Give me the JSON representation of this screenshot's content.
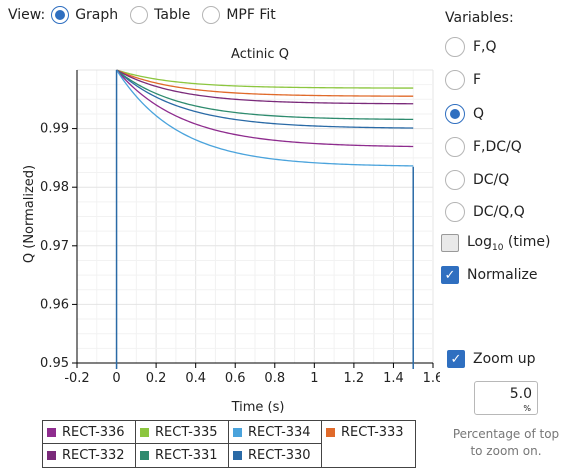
{
  "view": {
    "label": "View:",
    "options": [
      {
        "label": "Graph",
        "checked": true
      },
      {
        "label": "Table",
        "checked": false
      },
      {
        "label": "MPF Fit",
        "checked": false
      }
    ]
  },
  "variables": {
    "title": "Variables:",
    "options": [
      {
        "label": "F,Q",
        "checked": false
      },
      {
        "label": "F",
        "checked": false
      },
      {
        "label": "Q",
        "checked": true
      },
      {
        "label": "F,DC/Q",
        "checked": false
      },
      {
        "label": "DC/Q",
        "checked": false
      },
      {
        "label": "DC/Q,Q",
        "checked": false
      }
    ]
  },
  "log_option": {
    "label": "Log",
    "subscript": "10",
    "suffix": " (time)",
    "checked": false
  },
  "normalize_option": {
    "label": "Normalize",
    "checked": true
  },
  "zoom": {
    "label": "Zoom up",
    "checked": true,
    "value": "5.0",
    "unit": "%",
    "caption_line1": "Percentage of top",
    "caption_line2": "to zoom on."
  },
  "colors": {
    "accent": "#2f6fc0"
  },
  "chart_data": {
    "type": "line",
    "title": "Actinic Q",
    "xlabel": "Time (s)",
    "ylabel": "Q (Normalized)",
    "xlim": [
      -0.2,
      1.6
    ],
    "ylim": [
      0.95,
      1.0
    ],
    "xticks": [
      -0.2,
      0,
      0.2,
      0.4,
      0.6,
      0.8,
      1,
      1.2,
      1.4,
      1.6
    ],
    "xtick_labels": [
      "-0.2",
      "0",
      "0.2",
      "0.4",
      "0.6",
      "0.8",
      "1",
      "1.2",
      "1.4",
      "1.6"
    ],
    "yticks": [
      0.95,
      0.96,
      0.97,
      0.98,
      0.99
    ],
    "ytick_labels": [
      "0.95",
      "0.96",
      "0.97",
      "0.98",
      "0.99"
    ],
    "grid": true,
    "x_start": 0,
    "x_end": 1.5,
    "series": [
      {
        "name": "RECT-336",
        "color": "#8e2c8e",
        "start": 1.0,
        "end": 0.9868,
        "rate": 3.0
      },
      {
        "name": "RECT-335",
        "color": "#8cc63f",
        "start": 1.0,
        "end": 0.9969,
        "rate": 3.5
      },
      {
        "name": "RECT-334",
        "color": "#4aa3dc",
        "start": 1.0,
        "end": 0.9835,
        "rate": 3.2
      },
      {
        "name": "RECT-333",
        "color": "#e06a2a",
        "start": 1.0,
        "end": 0.9955,
        "rate": 3.4
      },
      {
        "name": "RECT-332",
        "color": "#7a2a7a",
        "start": 1.0,
        "end": 0.9942,
        "rate": 3.3
      },
      {
        "name": "RECT-331",
        "color": "#2e8b6e",
        "start": 1.0,
        "end": 0.9915,
        "rate": 3.2
      },
      {
        "name": "RECT-330",
        "color": "#2a6aa6",
        "start": 1.0,
        "end": 0.99,
        "rate": 3.1
      }
    ]
  }
}
